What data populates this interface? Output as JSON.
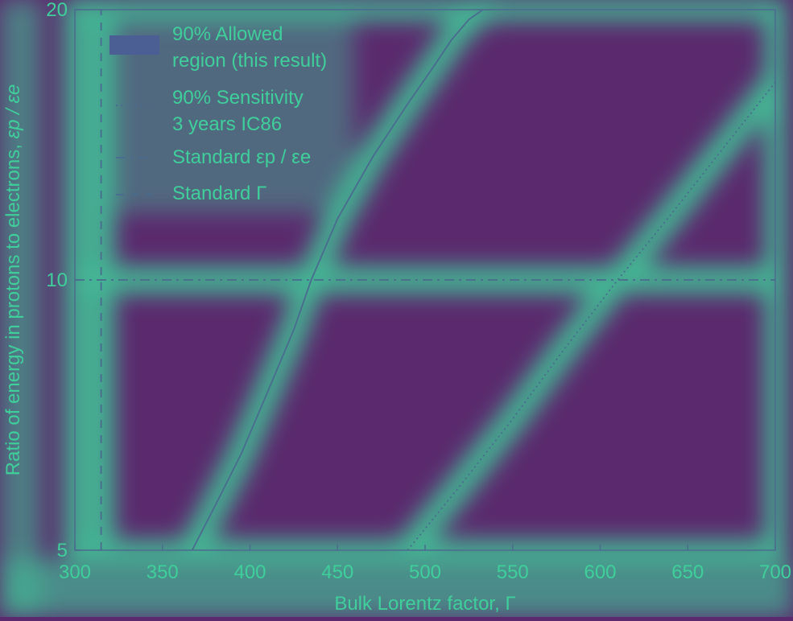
{
  "colors": {
    "background": "#5b2a6e",
    "text": "#3fcf9b",
    "line": "#4a6b8f",
    "glow": "#3fcf9b"
  },
  "chart_data": {
    "type": "line",
    "xlabel": "Bulk Lorentz factor, Γ",
    "ylabel_text": "Ratio of energy in protons to electrons, ",
    "ylabel_math": "εp / εe",
    "xlim": [
      300,
      700
    ],
    "ylim": [
      5,
      20
    ],
    "yscale": "log",
    "xticks": [
      300,
      350,
      400,
      450,
      500,
      550,
      600,
      650,
      700
    ],
    "xtick_labels": [
      "300",
      "350",
      "400",
      "450",
      "500",
      "550",
      "600",
      "650",
      "700"
    ],
    "yticks": [
      5,
      10,
      20
    ],
    "ytick_labels": [
      "5",
      "10",
      "20"
    ],
    "legend_position": "top-left",
    "legend": [
      {
        "style": "patch",
        "line1": "90% Allowed",
        "line2": "region (this result)"
      },
      {
        "style": "dotted",
        "line1": "90% Sensitivity",
        "line2": "3 years IC86"
      },
      {
        "style": "dashdot",
        "line1": "Standard εp / εe",
        "line2": ""
      },
      {
        "style": "dashed",
        "line1": "Standard Γ",
        "line2": ""
      }
    ],
    "series": [
      {
        "style": "solid",
        "x": [
          367,
          380,
          395,
          410,
          425,
          435,
          450,
          470,
          490,
          505,
          515,
          525,
          533,
          538
        ],
        "y": [
          5,
          5.6,
          6.4,
          7.5,
          8.8,
          10,
          11.7,
          13.7,
          15.7,
          17.3,
          18.5,
          19.5,
          20,
          20
        ]
      },
      {
        "style": "dotted",
        "x": [
          490,
          520,
          550,
          580,
          610,
          640,
          670,
          700
        ],
        "y": [
          5,
          5.9,
          7.0,
          8.4,
          10,
          11.8,
          14.0,
          16.6
        ]
      },
      {
        "style": "dashdot",
        "x": [
          300,
          700
        ],
        "y": [
          10,
          10
        ]
      },
      {
        "style": "dashed",
        "x": [
          315,
          315
        ],
        "y": [
          5,
          20
        ]
      }
    ]
  }
}
